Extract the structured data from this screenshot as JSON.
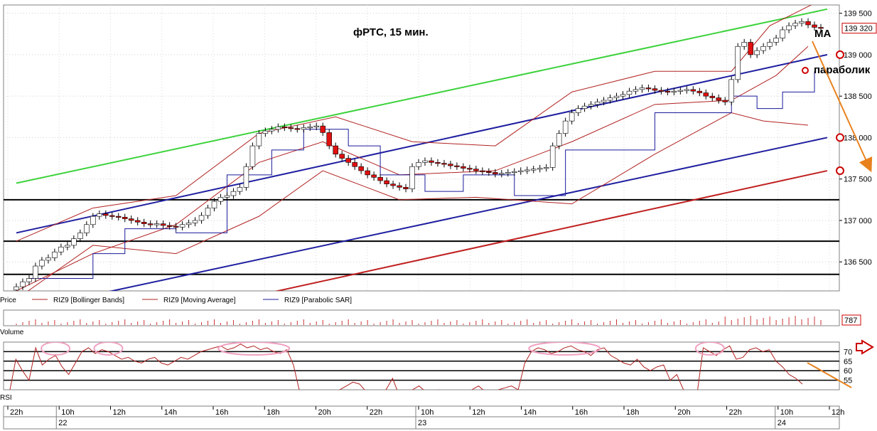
{
  "chart_data": {
    "type": "candlestick",
    "title": "фРТС,  15 мин.",
    "price_axis": {
      "min": 136150,
      "max": 139600,
      "ticks": [
        "139 500",
        "139 000",
        "138 500",
        "138 000",
        "137 500",
        "137 000",
        "136 500"
      ],
      "tick_values": [
        139500,
        139000,
        138500,
        138000,
        137500,
        137000,
        136500
      ]
    },
    "last_price": "139 320",
    "time_ticks": [
      "22h",
      "10h",
      "12h",
      "14h",
      "16h",
      "18h",
      "20h",
      "22h",
      "10h",
      "12h",
      "14h",
      "16h",
      "18h",
      "20h",
      "22h",
      "10h",
      "12h"
    ],
    "date_labels": [
      "22",
      "23",
      "24"
    ],
    "close_series": [
      136200,
      136260,
      136300,
      136450,
      136520,
      136550,
      136620,
      136680,
      136700,
      136780,
      136850,
      136950,
      137050,
      137080,
      137060,
      137050,
      137040,
      137020,
      137000,
      136980,
      136960,
      136950,
      136960,
      136940,
      136930,
      136920,
      136950,
      136970,
      137000,
      137060,
      137150,
      137230,
      137280,
      137300,
      137350,
      137400,
      137650,
      137900,
      138050,
      138080,
      138100,
      138130,
      138120,
      138110,
      138100,
      138120,
      138130,
      138140,
      138060,
      137900,
      137800,
      137750,
      137700,
      137650,
      137600,
      137550,
      137520,
      137480,
      137440,
      137420,
      137400,
      137380,
      137650,
      137700,
      137720,
      137700,
      137690,
      137680,
      137660,
      137650,
      137630,
      137620,
      137600,
      137590,
      137580,
      137560,
      137570,
      137580,
      137590,
      137600,
      137610,
      137620,
      137630,
      137640,
      137900,
      138050,
      138200,
      138300,
      138350,
      138380,
      138400,
      138430,
      138450,
      138480,
      138500,
      138520,
      138560,
      138580,
      138600,
      138590,
      138570,
      138560,
      138550,
      138560,
      138570,
      138580,
      138560,
      138540,
      138500,
      138480,
      138450,
      138430,
      138700,
      139100,
      139150,
      139000,
      139050,
      139100,
      139150,
      139200,
      139300,
      139350,
      139380,
      139400,
      139360,
      139330,
      139320
    ],
    "bollinger_upper": [
      [
        0,
        136750
      ],
      [
        12,
        137150
      ],
      [
        25,
        137300
      ],
      [
        38,
        138050
      ],
      [
        50,
        138250
      ],
      [
        62,
        137950
      ],
      [
        75,
        137900
      ],
      [
        87,
        138550
      ],
      [
        100,
        138800
      ],
      [
        112,
        138800
      ],
      [
        118,
        139350
      ],
      [
        125,
        139620
      ]
    ],
    "bollinger_lower": [
      [
        0,
        136050
      ],
      [
        12,
        136700
      ],
      [
        25,
        136600
      ],
      [
        38,
        137050
      ],
      [
        48,
        137600
      ],
      [
        60,
        137250
      ],
      [
        72,
        137280
      ],
      [
        87,
        137200
      ],
      [
        100,
        137800
      ],
      [
        112,
        138300
      ],
      [
        117,
        138200
      ],
      [
        124,
        138150
      ]
    ],
    "moving_average": [
      [
        0,
        136150
      ],
      [
        12,
        136600
      ],
      [
        25,
        136950
      ],
      [
        38,
        137700
      ],
      [
        48,
        137950
      ],
      [
        60,
        137550
      ],
      [
        75,
        137600
      ],
      [
        87,
        137950
      ],
      [
        100,
        138400
      ],
      [
        112,
        138450
      ],
      [
        119,
        138750
      ],
      [
        124,
        139100
      ]
    ],
    "parabolic_sar": [
      [
        2,
        136300
      ],
      [
        12,
        136600
      ],
      [
        17,
        136900
      ],
      [
        25,
        136850
      ],
      [
        33,
        137550
      ],
      [
        40,
        137850
      ],
      [
        45,
        138100
      ],
      [
        52,
        137900
      ],
      [
        57,
        137550
      ],
      [
        64,
        137350
      ],
      [
        70,
        137550
      ],
      [
        78,
        137300
      ],
      [
        86,
        137850
      ],
      [
        100,
        138300
      ],
      [
        112,
        138500
      ],
      [
        116,
        138350
      ],
      [
        120,
        138550
      ],
      [
        125,
        138800
      ]
    ],
    "trend_lines": {
      "green": [
        [
          0,
          137450
        ],
        [
          127,
          139550
        ]
      ],
      "blue_upper": [
        [
          0,
          136850
        ],
        [
          127,
          139000
        ]
      ],
      "blue_lower": [
        [
          12,
          136100
        ],
        [
          127,
          138000
        ]
      ],
      "red": [
        [
          38,
          136100
        ],
        [
          127,
          137600
        ]
      ],
      "horizontal": [
        137250,
        136750,
        136350
      ]
    },
    "legend": [
      {
        "label": "Price",
        "color": "#000000"
      },
      {
        "label": "RIZ9 [Bollinger Bands]",
        "color": "#b22222"
      },
      {
        "label": "RIZ9 [Moving Average]",
        "color": "#b22222"
      },
      {
        "label": "RIZ9 [Parabolic SAR]",
        "color": "#1a1a9a"
      }
    ],
    "annotations": [
      "MA",
      "параболик"
    ],
    "volume": {
      "label": "Volume",
      "last_value": "787"
    },
    "rsi": {
      "label": "RSI",
      "ticks": [
        "70",
        "65",
        "60",
        "55"
      ],
      "tick_values": [
        70,
        65,
        60,
        55
      ],
      "min": 50,
      "max": 75,
      "values": [
        48,
        66,
        60,
        55,
        72,
        63,
        66,
        68,
        62,
        58,
        64,
        70,
        72,
        69,
        71,
        70,
        68,
        66,
        67,
        65,
        64,
        66,
        67,
        64,
        63,
        65,
        67,
        66,
        68,
        70,
        71,
        72,
        73,
        71,
        72,
        74,
        72,
        73,
        71,
        72,
        70,
        69,
        71,
        63,
        48,
        46,
        45,
        44,
        46,
        47,
        50,
        52,
        54,
        53,
        49,
        46,
        49,
        50,
        56,
        47,
        48,
        50,
        52,
        49,
        46,
        50,
        48,
        44,
        46,
        48,
        50,
        52,
        49,
        48,
        50,
        51,
        52,
        50,
        64,
        70,
        72,
        71,
        69,
        70,
        72,
        73,
        71,
        70,
        68,
        71,
        72,
        68,
        66,
        64,
        63,
        66,
        62,
        60,
        62,
        63,
        55,
        58,
        50,
        48,
        46,
        72,
        70,
        68,
        71,
        73,
        66,
        67,
        71,
        72,
        70,
        71,
        65,
        62,
        58,
        56,
        53
      ]
    }
  }
}
